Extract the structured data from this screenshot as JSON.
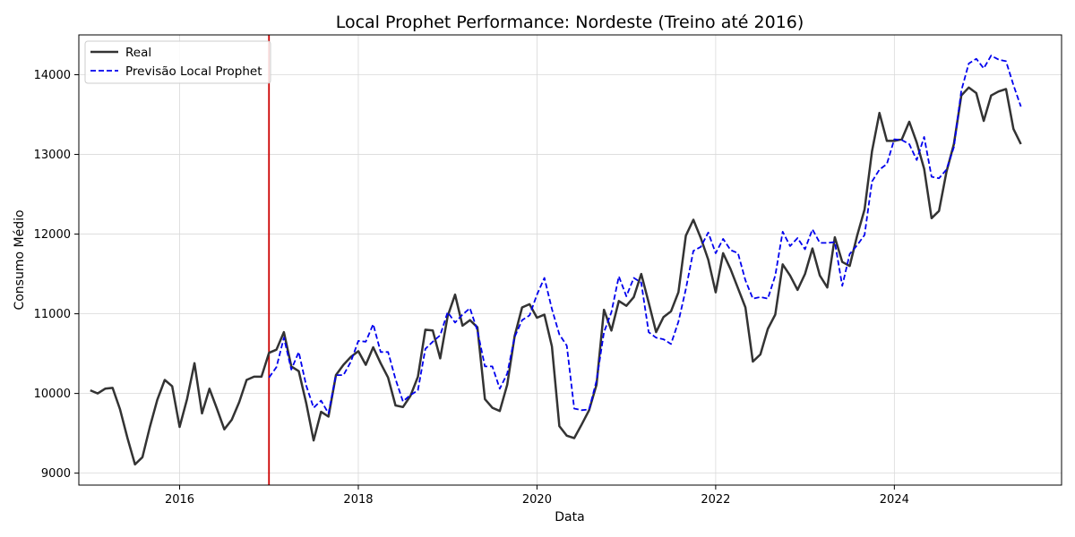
{
  "chart_data": {
    "type": "line",
    "title": "Local Prophet Performance: Nordeste (Treino até 2016)",
    "xlabel": "Data",
    "ylabel": "Consumo Médio",
    "x_ticks": [
      "2016",
      "2018",
      "2020",
      "2022",
      "2024"
    ],
    "y_ticks": [
      "9000",
      "10000",
      "11000",
      "12000",
      "13000",
      "14000"
    ],
    "xlim": [
      "2014-11-15",
      "2025-11-15"
    ],
    "ylim": [
      8850,
      14500
    ],
    "grid": true,
    "legend_position": "top-left",
    "train_cutoff": "2017-01-01",
    "train_cutoff_color": "#cc0000",
    "series": [
      {
        "name": "Real",
        "color": "#333333",
        "style": "solid",
        "start": "2015-01-01",
        "values": [
          10040,
          10000,
          10060,
          10070,
          9800,
          9440,
          9110,
          9200,
          9580,
          9920,
          10170,
          10090,
          9580,
          9930,
          10380,
          9750,
          10060,
          9810,
          9550,
          9670,
          9890,
          10170,
          10210,
          10210,
          10510,
          10550,
          10770,
          10340,
          10280,
          9880,
          9410,
          9770,
          9710,
          10230,
          10360,
          10460,
          10530,
          10360,
          10580,
          10380,
          10200,
          9850,
          9830,
          9970,
          10210,
          10800,
          10790,
          10440,
          10970,
          11240,
          10850,
          10920,
          10830,
          9930,
          9820,
          9780,
          10110,
          10720,
          11080,
          11120,
          10950,
          10990,
          10590,
          9590,
          9470,
          9440,
          9610,
          9790,
          10110,
          11050,
          10790,
          11160,
          11100,
          11210,
          11500,
          11140,
          10770,
          10960,
          11030,
          11270,
          11980,
          12180,
          11950,
          11680,
          11270,
          11760,
          11560,
          11320,
          11080,
          10400,
          10490,
          10810,
          10990,
          11620,
          11480,
          11300,
          11500,
          11820,
          11480,
          11330,
          11960,
          11650,
          11600,
          11980,
          12310,
          13040,
          13520,
          13170,
          13170,
          13190,
          13410,
          13150,
          12820,
          12200,
          12290,
          12780,
          13130,
          13740,
          13840,
          13770,
          13420,
          13740,
          13790,
          13820,
          13320,
          13130
        ]
      },
      {
        "name": "Previsão Local Prophet",
        "color": "#0000ee",
        "style": "dashed",
        "start": "2017-01-01",
        "values": [
          10200,
          10330,
          10700,
          10300,
          10520,
          10100,
          9820,
          9910,
          9750,
          10230,
          10230,
          10400,
          10660,
          10650,
          10870,
          10520,
          10520,
          10180,
          9900,
          9980,
          10040,
          10560,
          10650,
          10730,
          11020,
          10890,
          10990,
          11070,
          10790,
          10340,
          10340,
          10060,
          10250,
          10710,
          10920,
          10980,
          11240,
          11450,
          11060,
          10740,
          10600,
          9810,
          9790,
          9800,
          10160,
          10770,
          11020,
          11470,
          11220,
          11450,
          11390,
          10770,
          10700,
          10680,
          10620,
          10900,
          11310,
          11790,
          11840,
          12020,
          11760,
          11940,
          11800,
          11760,
          11420,
          11190,
          11210,
          11190,
          11480,
          12030,
          11850,
          11950,
          11810,
          12060,
          11890,
          11890,
          11900,
          11350,
          11750,
          11860,
          11990,
          12660,
          12810,
          12880,
          13190,
          13180,
          13130,
          12930,
          13220,
          12720,
          12700,
          12810,
          13090,
          13800,
          14140,
          14200,
          14080,
          14240,
          14190,
          14170,
          13870,
          13600
        ]
      }
    ]
  }
}
